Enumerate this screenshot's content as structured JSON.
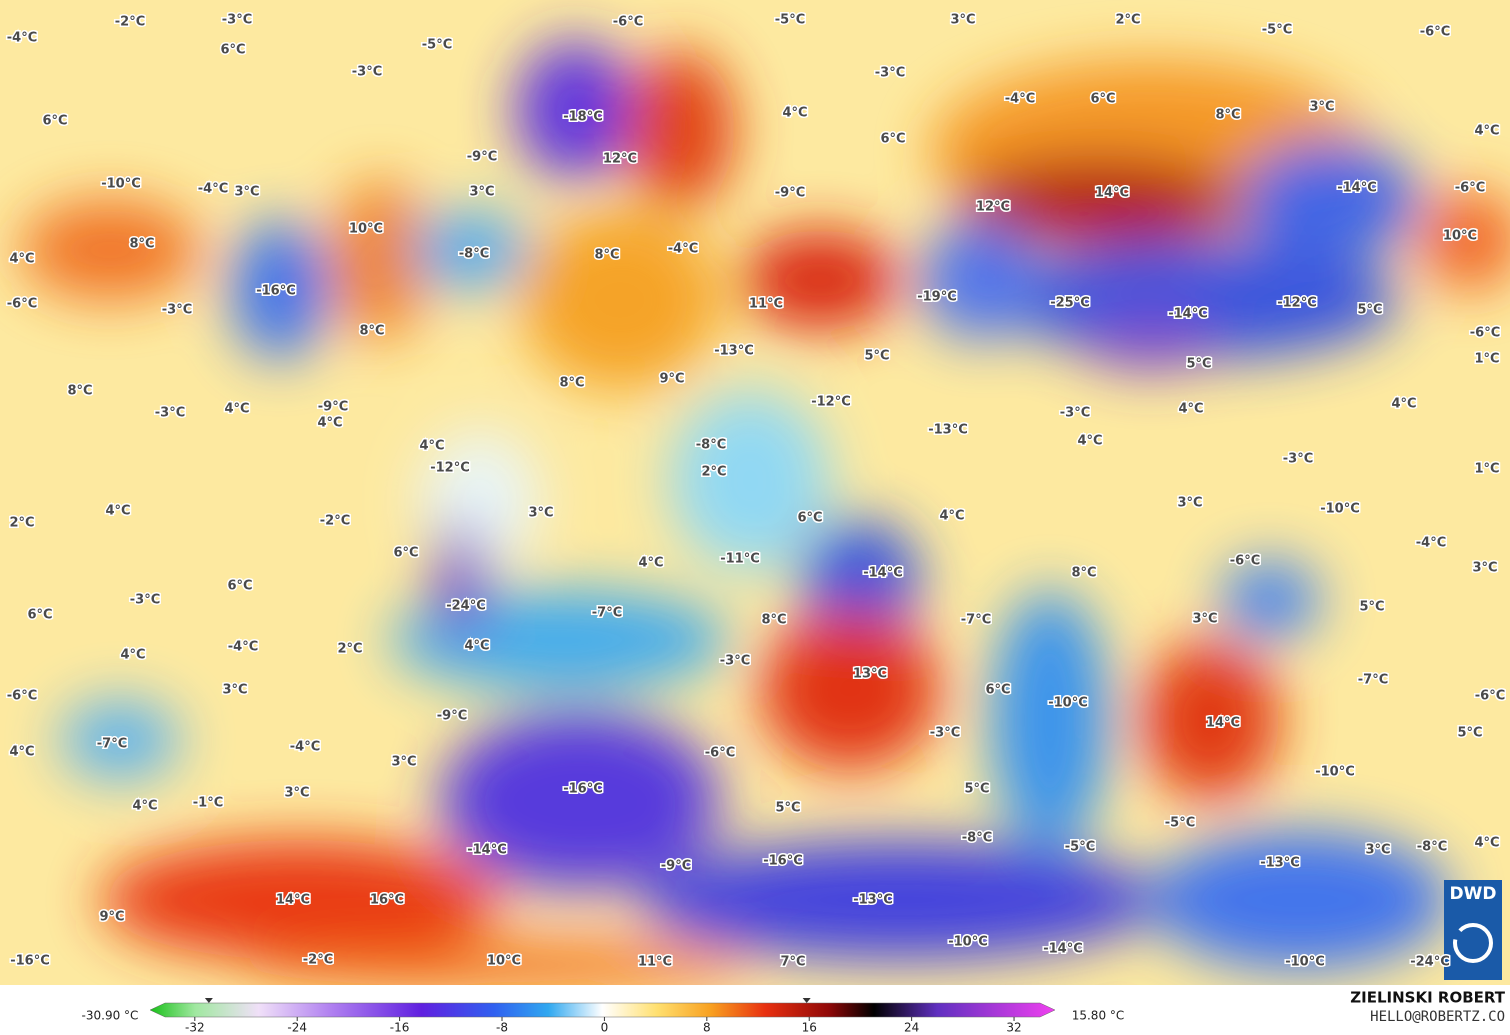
{
  "map": {
    "labels": [
      "-2°C",
      "-3°C",
      "-6°C",
      "-5°C",
      "3°C",
      "2°C",
      "-5°C",
      "-6°C",
      "-4°C",
      "6°C",
      "-5°C",
      "-3°C",
      "-3°C",
      "6°C",
      "-18°C",
      "4°C",
      "-4°C",
      "6°C",
      "8°C",
      "3°C",
      "4°C",
      "-9°C",
      "12°C",
      "6°C",
      "-10°C",
      "-4°C",
      "3°C",
      "3°C",
      "-9°C",
      "12°C",
      "14°C",
      "-14°C",
      "-6°C",
      "8°C",
      "10°C",
      "-8°C",
      "8°C",
      "-4°C",
      "4°C",
      "10°C",
      "-16°C",
      "-6°C",
      "-3°C",
      "11°C",
      "-19°C",
      "-25°C",
      "-14°C",
      "-12°C",
      "5°C",
      "8°C",
      "-6°C",
      "-13°C",
      "5°C",
      "5°C",
      "1°C",
      "8°C",
      "9°C",
      "8°C",
      "-3°C",
      "4°C",
      "-9°C",
      "4°C",
      "-12°C",
      "-3°C",
      "4°C",
      "4°C",
      "-13°C",
      "4°C",
      "-8°C",
      "4°C",
      "-12°C",
      "2°C",
      "-3°C",
      "1°C",
      "4°C",
      "3°C",
      "2°C",
      "-2°C",
      "6°C",
      "4°C",
      "3°C",
      "-10°C",
      "-4°C",
      "6°C",
      "-11°C",
      "4°C",
      "-6°C",
      "-14°C",
      "8°C",
      "3°C",
      "6°C",
      "-3°C",
      "-24°C",
      "6°C",
      "-7°C",
      "8°C",
      "-7°C",
      "3°C",
      "5°C",
      "4°C",
      "-4°C",
      "2°C",
      "4°C",
      "-3°C",
      "13°C",
      "-7°C",
      "3°C",
      "-6°C",
      "6°C",
      "-10°C",
      "-6°C",
      "-9°C",
      "14°C",
      "-7°C",
      "-4°C",
      "-3°C",
      "5°C",
      "4°C",
      "3°C",
      "-6°C",
      "-10°C",
      "-16°C",
      "4°C",
      "-1°C",
      "3°C",
      "5°C",
      "5°C",
      "-5°C",
      "-8°C",
      "-5°C",
      "-13°C",
      "3°C",
      "-8°C",
      "4°C",
      "-14°C",
      "-9°C",
      "-16°C",
      "14°C",
      "16°C",
      "-13°C",
      "9°C",
      "-10°C",
      "-14°C",
      "-16°C",
      "-2°C",
      "10°C",
      "11°C",
      "7°C",
      "-10°C",
      "-24°C"
    ]
  },
  "colorbar": {
    "lim": [
      -35.5,
      35.2
    ],
    "ticks": [
      -32,
      -24,
      -16,
      -8,
      0,
      8,
      16,
      24,
      32
    ],
    "min": {
      "value": -30.9,
      "label": "-30.90 °C"
    },
    "max": {
      "value": 15.8,
      "label": "15.80 °C"
    }
  },
  "credit": {
    "author": "ZIELINSKI ROBERT",
    "contact": "HELLO@ROBERTZ.CO"
  },
  "logo": "DWD"
}
